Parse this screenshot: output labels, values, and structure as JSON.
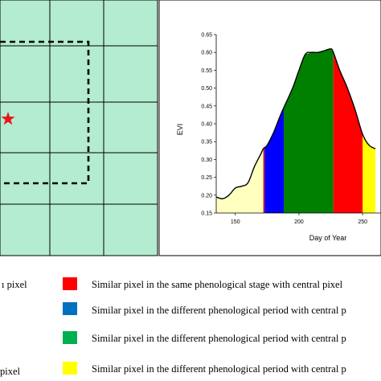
{
  "left_panel": {
    "background": "#b3ecd1",
    "grid_color": "#000000",
    "window_border": "dashed",
    "central_pixel_marker": "star-icon",
    "marker_color": "#e8141c"
  },
  "chart_data": {
    "type": "area",
    "xlabel": "Day of Year",
    "ylabel": "EVI",
    "title": "",
    "xlim": [
      135,
      260
    ],
    "ylim": [
      0.15,
      0.65
    ],
    "x_ticks": [
      150,
      200,
      250
    ],
    "x_tick_labels": [
      "150",
      "200",
      "250"
    ],
    "y_ticks": [
      0.15,
      0.2,
      0.25,
      0.3,
      0.35,
      0.4,
      0.45,
      0.5,
      0.55,
      0.6,
      0.65
    ],
    "y_tick_labels": [
      "0.15",
      "0.20",
      "0.25",
      "0.30",
      "0.35",
      "0.40",
      "0.45",
      "0.50",
      "0.55",
      "0.60",
      "0.65"
    ],
    "series": [
      {
        "x": [
          135,
          140,
          145,
          150,
          155,
          160,
          165,
          170,
          172,
          175,
          180,
          185,
          188,
          195,
          200,
          205,
          210,
          215,
          220,
          225,
          227,
          232,
          238,
          244,
          250,
          255,
          260
        ],
        "y": [
          0.195,
          0.19,
          0.2,
          0.22,
          0.225,
          0.235,
          0.28,
          0.315,
          0.33,
          0.34,
          0.375,
          0.42,
          0.445,
          0.5,
          0.55,
          0.595,
          0.6,
          0.6,
          0.605,
          0.61,
          0.6,
          0.55,
          0.5,
          0.44,
          0.37,
          0.34,
          0.33
        ]
      }
    ],
    "fill_segments": [
      {
        "from": 135,
        "to": 172,
        "color": "#ffffc0"
      },
      {
        "from": 172,
        "to": 173,
        "color": "#ff0000"
      },
      {
        "from": 173,
        "to": 188,
        "color": "#0000ff"
      },
      {
        "from": 188,
        "to": 227,
        "color": "#008000"
      },
      {
        "from": 227,
        "to": 250,
        "color": "#ff0000"
      },
      {
        "from": 250,
        "to": 260,
        "color": "#ffff00"
      }
    ]
  },
  "legend": {
    "left_fragment": "ı pixel",
    "left_fragment_2": "pixel",
    "items": [
      {
        "color": "#ff0000",
        "label": "Similar pixel in the same phenological stage with central pixel"
      },
      {
        "color": "#0070c0",
        "label": "Similar pixel in the different phenological period with central p"
      },
      {
        "color": "#00b050",
        "label": "Similar pixel in the different phenological period with central p"
      },
      {
        "color": "#ffff00",
        "label": "Similar pixel in the different phenological period with central p"
      }
    ]
  }
}
